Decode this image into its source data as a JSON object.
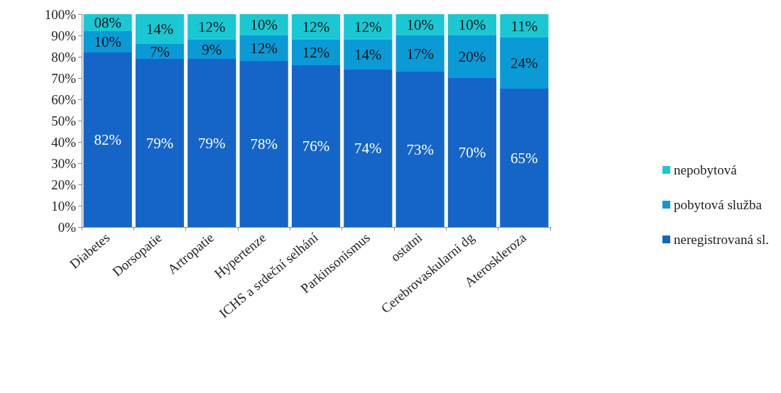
{
  "chart_data": {
    "type": "bar",
    "stacked": true,
    "categories": [
      "Diabetes",
      "Dorsopatie",
      "Artropatie",
      "Hypertenze",
      "ICHS a srdeční selhání",
      "Parkinsonismus",
      "ostatni",
      "Cerebrovaskularni dg",
      "Ateroskleroza"
    ],
    "series": [
      {
        "name": "neregistrovaná sl.",
        "color": "#1565c8",
        "values": [
          82,
          79,
          79,
          78,
          76,
          74,
          73,
          70,
          65
        ],
        "value_labels": [
          "82%",
          "79%",
          "79%",
          "78%",
          "76%",
          "74%",
          "73%",
          "70%",
          "65%"
        ]
      },
      {
        "name": "pobytová služba",
        "color": "#0a9ad6",
        "values": [
          10,
          7,
          9,
          12,
          12,
          14,
          17,
          20,
          24
        ],
        "value_labels": [
          "10%",
          "7%",
          "9%",
          "12%",
          "12%",
          "14%",
          "17%",
          "20%",
          "24%"
        ]
      },
      {
        "name": "nepobytová",
        "color": "#19c8d4",
        "values": [
          8,
          14,
          12,
          10,
          12,
          12,
          10,
          10,
          11
        ],
        "value_labels": [
          "08%",
          "14%",
          "12%",
          "10%",
          "12%",
          "12%",
          "10%",
          "10%",
          "11%"
        ]
      }
    ],
    "ylim": [
      0,
      100
    ],
    "yticks": [
      {
        "value": 0,
        "label": "0%"
      },
      {
        "value": 10,
        "label": "10%"
      },
      {
        "value": 20,
        "label": "20%"
      },
      {
        "value": 30,
        "label": "30%"
      },
      {
        "value": 40,
        "label": "40%"
      },
      {
        "value": 50,
        "label": "50%"
      },
      {
        "value": 60,
        "label": "60%"
      },
      {
        "value": 70,
        "label": "70%"
      },
      {
        "value": 80,
        "label": "80%"
      },
      {
        "value": 90,
        "label": "90%"
      },
      {
        "value": 100,
        "label": "100%"
      }
    ],
    "grid": false,
    "legend": "right"
  }
}
